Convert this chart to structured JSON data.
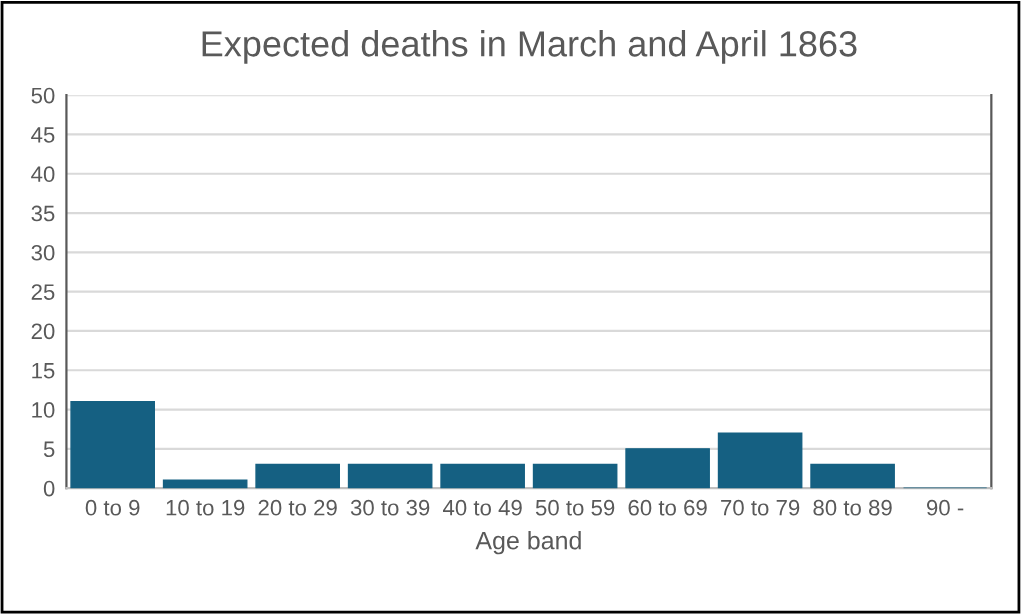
{
  "chart_data": {
    "type": "bar",
    "title": "Expected deaths in March and April 1863",
    "xlabel": "Age band",
    "categories": [
      "0 to 9",
      "10 to 19",
      "20 to 29",
      "30 to 39",
      "40 to 49",
      "50 to 59",
      "60 to 69",
      "70 to 79",
      "80 to 89",
      "90 -"
    ],
    "values": [
      11,
      1,
      3,
      3,
      3,
      3,
      5,
      7,
      3,
      0
    ],
    "color": "#156082",
    "ylim": [
      0,
      50
    ],
    "yticks": [
      0,
      5,
      10,
      15,
      20,
      25,
      30,
      35,
      40,
      45,
      50
    ],
    "grid": "y",
    "legend": false
  }
}
